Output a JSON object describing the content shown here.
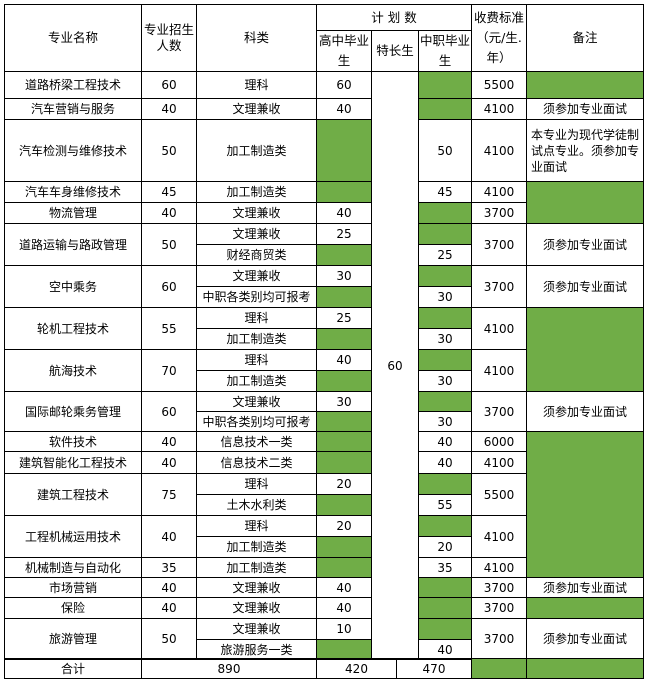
{
  "header": {
    "major": "专业名称",
    "quota": "专业招生人数",
    "subject": "科类",
    "plan": "计 划 数",
    "hs": "高中毕业生",
    "special": "特长生",
    "voc": "中职毕业生",
    "fee": "收费标准（元/生.年）",
    "note": "备注"
  },
  "special_total": "60",
  "majors": [
    {
      "name": "道路桥梁工程技术",
      "quota": "60",
      "fee": "5500",
      "note": "",
      "note_green": true,
      "rows": [
        {
          "subject": "理科",
          "hs": "60",
          "voc": null
        }
      ]
    },
    {
      "name": "汽车营销与服务",
      "quota": "40",
      "fee": "4100",
      "note": "须参加专业面试",
      "note_green": false,
      "rows": [
        {
          "subject": "文理兼收",
          "hs": "40",
          "voc": null
        }
      ]
    },
    {
      "name": "汽车检测与维修技术",
      "quota": "50",
      "fee": "4100",
      "note": "本专业为现代学徒制试点专业。须参加专业面试",
      "note_green": false,
      "rows": [
        {
          "subject": "加工制造类",
          "hs": null,
          "voc": "50"
        }
      ]
    },
    {
      "name": "汽车车身维修技术",
      "quota": "45",
      "fee": "4100",
      "note": "",
      "note_green": true,
      "rows": [
        {
          "subject": "加工制造类",
          "hs": null,
          "voc": "45"
        }
      ]
    },
    {
      "name": "物流管理",
      "quota": "40",
      "fee": "3700",
      "note_merged": true,
      "rows": [
        {
          "subject": "文理兼收",
          "hs": "40",
          "voc": null
        }
      ]
    },
    {
      "name": "道路运输与路政管理",
      "quota": "50",
      "fee": "3700",
      "note": "须参加专业面试",
      "note_green": false,
      "rows": [
        {
          "subject": "文理兼收",
          "hs": "25",
          "voc": null
        },
        {
          "subject": "财经商贸类",
          "hs": null,
          "voc": "25"
        }
      ]
    },
    {
      "name": "空中乘务",
      "quota": "60",
      "fee": "3700",
      "note": "须参加专业面试",
      "note_green": false,
      "rows": [
        {
          "subject": "文理兼收",
          "hs": "30",
          "voc": null
        },
        {
          "subject": "中职各类别均可报考",
          "hs": null,
          "voc": "30"
        }
      ]
    },
    {
      "name": "轮机工程技术",
      "quota": "55",
      "fee": "4100",
      "note": "",
      "note_green": true,
      "rows": [
        {
          "subject": "理科",
          "hs": "25",
          "voc": null
        },
        {
          "subject": "加工制造类",
          "hs": null,
          "voc": "30"
        }
      ]
    },
    {
      "name": "航海技术",
      "quota": "70",
      "fee": "4100",
      "note_merged": true,
      "rows": [
        {
          "subject": "理科",
          "hs": "40",
          "voc": null
        },
        {
          "subject": "加工制造类",
          "hs": null,
          "voc": "30"
        }
      ]
    },
    {
      "name": "国际邮轮乘务管理",
      "quota": "60",
      "fee": "3700",
      "note": "须参加专业面试",
      "note_green": false,
      "rows": [
        {
          "subject": "文理兼收",
          "hs": "30",
          "voc": null
        },
        {
          "subject": "中职各类别均可报考",
          "hs": null,
          "voc": "30"
        }
      ]
    },
    {
      "name": "软件技术",
      "quota": "40",
      "fee": "6000",
      "note": "",
      "note_green": true,
      "rows": [
        {
          "subject": "信息技术一类",
          "hs": null,
          "voc": "40"
        }
      ]
    },
    {
      "name": "建筑智能化工程技术",
      "quota": "40",
      "fee": "4100",
      "note_merged": true,
      "rows": [
        {
          "subject": "信息技术二类",
          "hs": null,
          "voc": "40"
        }
      ]
    },
    {
      "name": "建筑工程技术",
      "quota": "75",
      "fee": "5500",
      "note_merged": true,
      "rows": [
        {
          "subject": "理科",
          "hs": "20",
          "voc": null
        },
        {
          "subject": "土木水利类",
          "hs": null,
          "voc": "55"
        }
      ]
    },
    {
      "name": "工程机械运用技术",
      "quota": "40",
      "fee": "4100",
      "note_merged": true,
      "rows": [
        {
          "subject": "理科",
          "hs": "20",
          "voc": null
        },
        {
          "subject": "加工制造类",
          "hs": null,
          "voc": "20"
        }
      ]
    },
    {
      "name": "机械制造与自动化",
      "quota": "35",
      "fee": "4100",
      "note_merged": true,
      "rows": [
        {
          "subject": "加工制造类",
          "hs": null,
          "voc": "35"
        }
      ]
    },
    {
      "name": "市场营销",
      "quota": "40",
      "fee": "3700",
      "note": "须参加专业面试",
      "note_green": false,
      "rows": [
        {
          "subject": "文理兼收",
          "hs": "40",
          "voc": null
        }
      ]
    },
    {
      "name": "保险",
      "quota": "40",
      "fee": "3700",
      "note": "",
      "note_green": true,
      "rows": [
        {
          "subject": "文理兼收",
          "hs": "40",
          "voc": null
        }
      ]
    },
    {
      "name": "旅游管理",
      "quota": "50",
      "fee": "3700",
      "note": "须参加专业面试",
      "note_green": false,
      "rows": [
        {
          "subject": "文理兼收",
          "hs": "10",
          "voc": null
        },
        {
          "subject": "旅游服务一类",
          "hs": null,
          "voc": "40"
        }
      ]
    }
  ],
  "total": {
    "label": "合计",
    "quota": "890",
    "hs": "420",
    "voc": "470"
  },
  "colors": {
    "highlight": "#70ad47"
  }
}
